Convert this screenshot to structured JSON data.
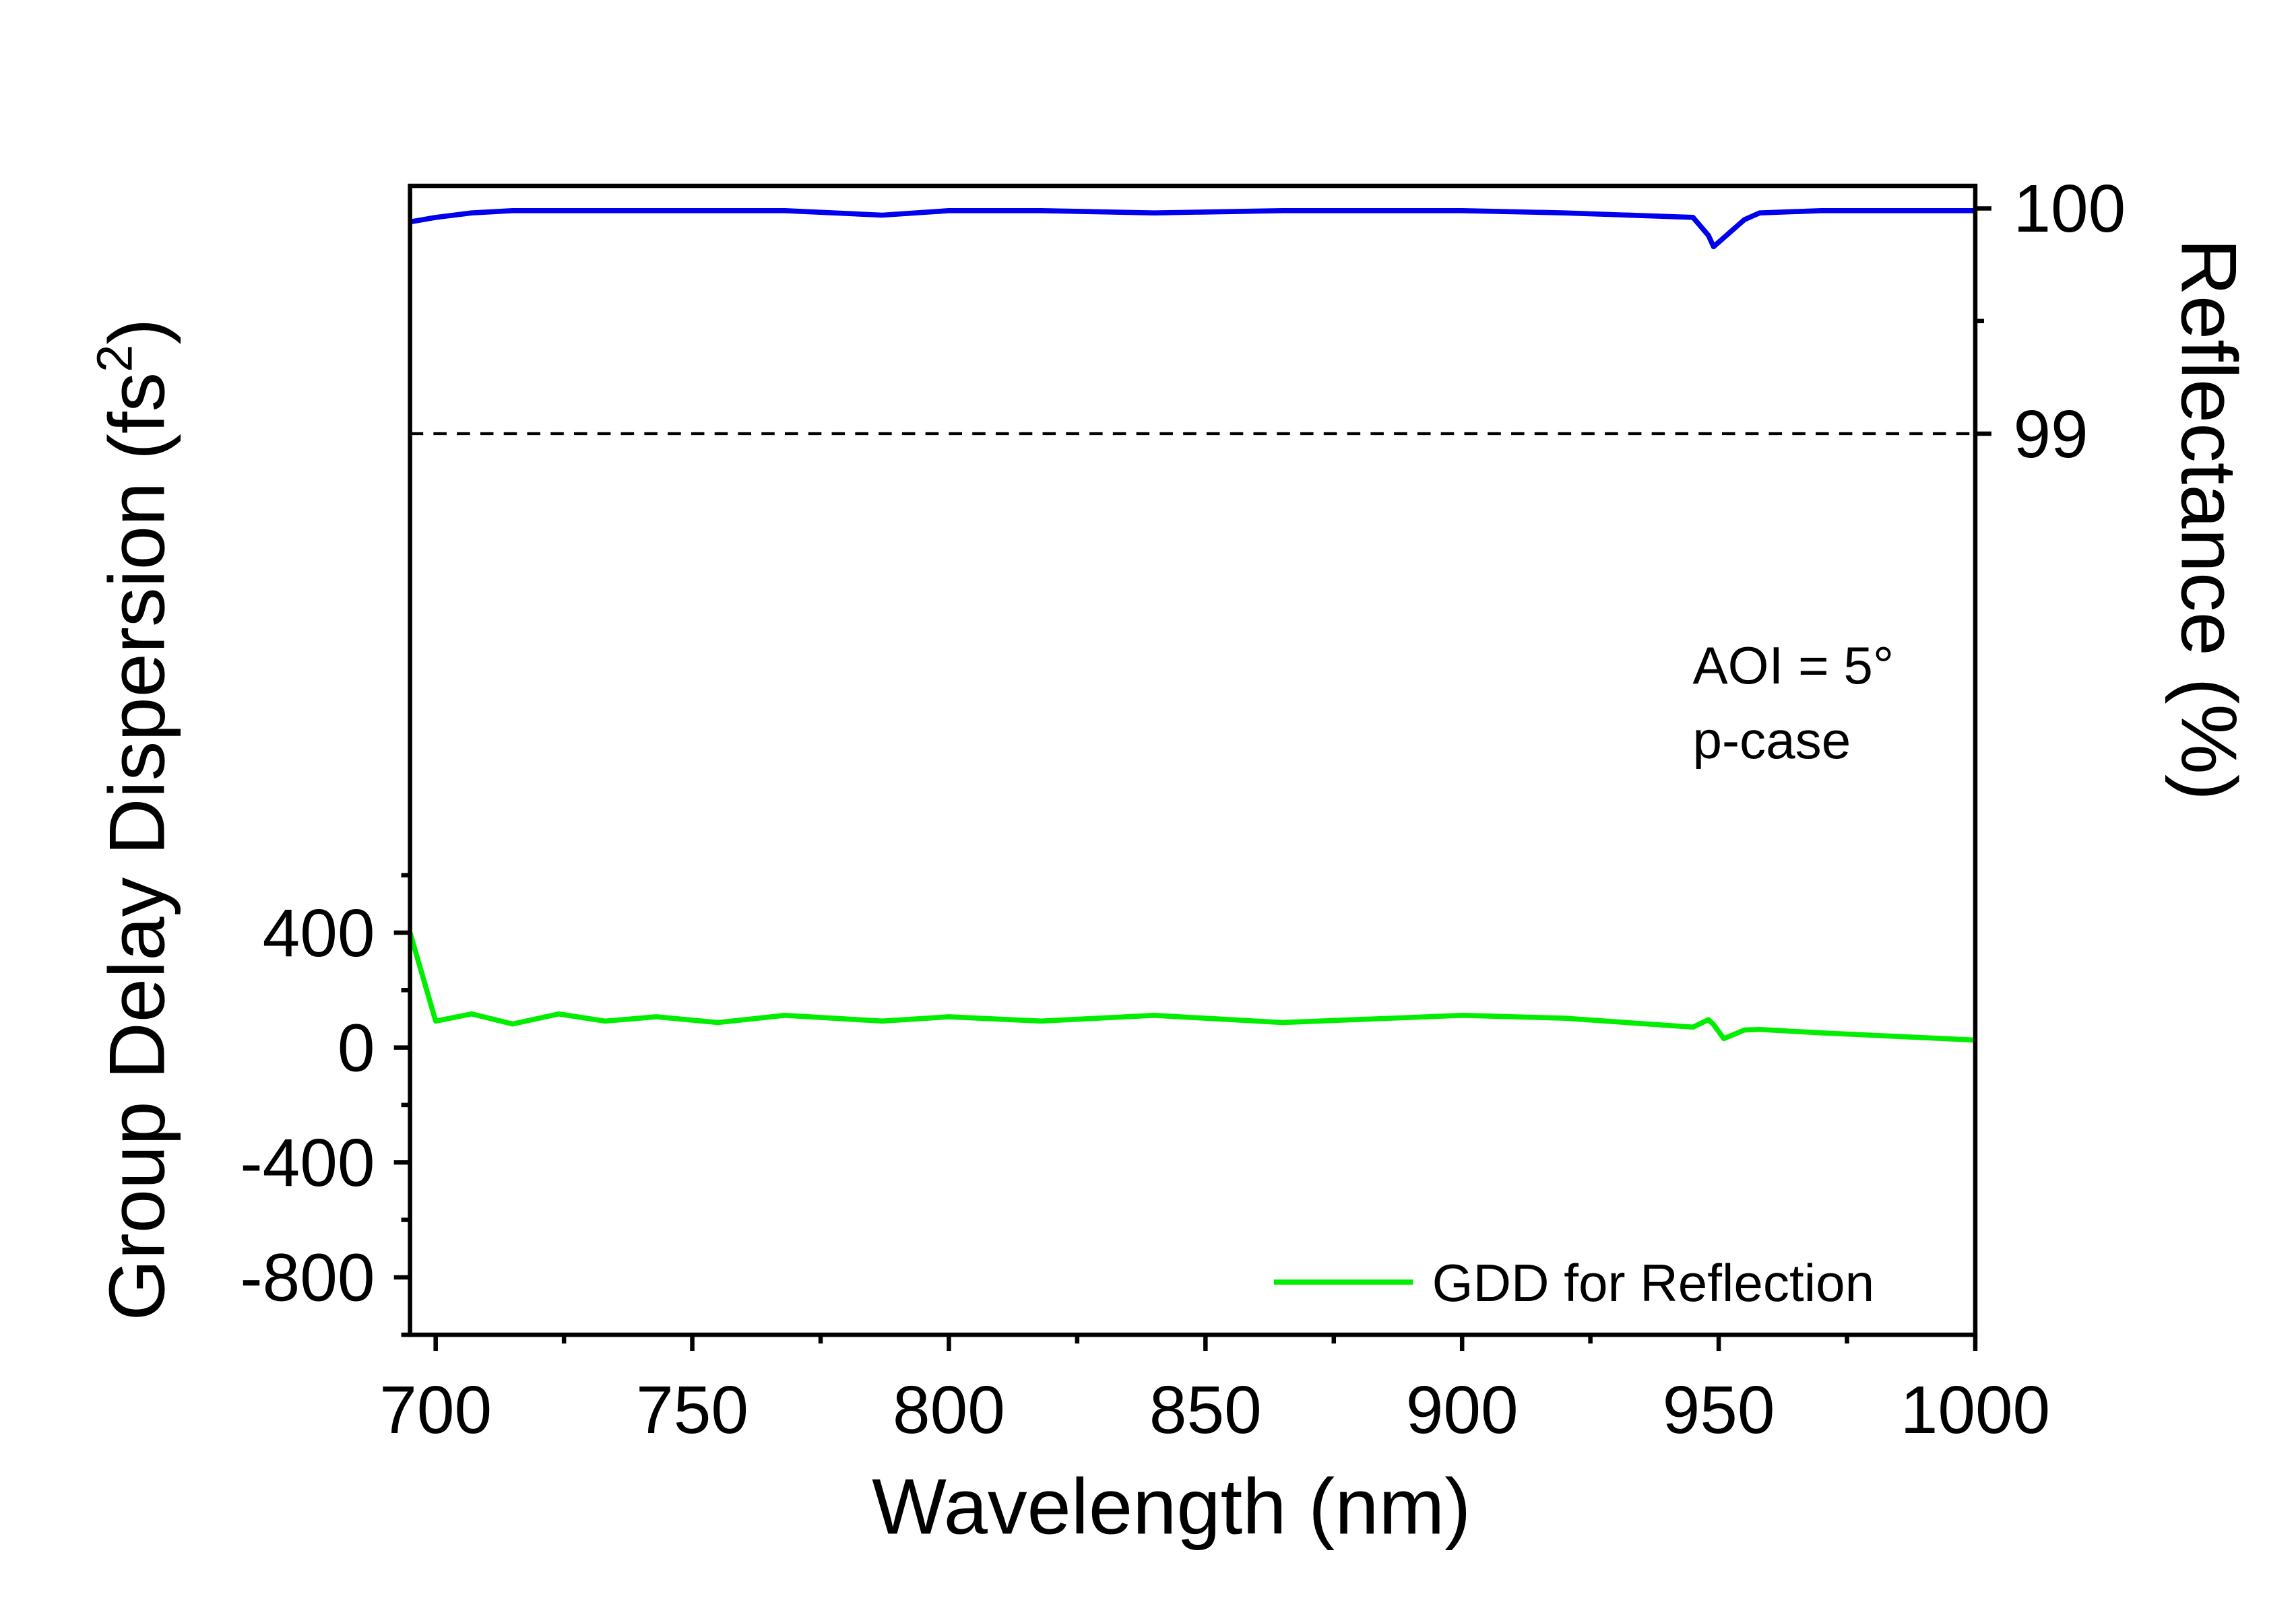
{
  "chart_data": {
    "type": "line",
    "xlabel": "Wavelength (nm)",
    "ylabel_parts": [
      "Group Delay Dispersion (fs",
      "2",
      ")"
    ],
    "y2label": "Reflectance (%)",
    "annotations": [
      "AOI = 5°",
      "p-case"
    ],
    "x": [
      695,
      700,
      707,
      715,
      724,
      733,
      743,
      755,
      768,
      787,
      800,
      818,
      840,
      865,
      900,
      920,
      945,
      948,
      949,
      951,
      955,
      958,
      970,
      1000
    ],
    "series": [
      {
        "name": "GDD for Reflection",
        "color": "#00ee00",
        "axis": "y",
        "values": [
          400,
          92,
          117,
          82,
          117,
          92,
          107,
          87,
          112,
          92,
          107,
          92,
          112,
          87,
          112,
          102,
          71,
          97,
          80,
          31,
          61,
          63,
          51,
          26
        ]
      },
      {
        "color": "#0000ee",
        "axis": "y2",
        "values": [
          99.94,
          99.96,
          99.98,
          99.99,
          99.99,
          99.99,
          99.99,
          99.99,
          99.99,
          99.97,
          99.99,
          99.99,
          99.98,
          99.99,
          99.99,
          99.98,
          99.96,
          99.88,
          99.83,
          99.87,
          99.95,
          99.98,
          99.99,
          99.99
        ]
      }
    ],
    "xlim": [
      695,
      1000
    ],
    "xticks": [
      700,
      750,
      800,
      850,
      900,
      950,
      1000
    ],
    "xminorticks": [
      725,
      775,
      825,
      875,
      925,
      975
    ],
    "ylim": [
      -1000,
      3000
    ],
    "yticks": [
      -800,
      -400,
      0,
      400
    ],
    "yminorticks": [
      -1000,
      -600,
      -200,
      200,
      600
    ],
    "y2lim": [
      95,
      100.1
    ],
    "y2ticks": [
      99,
      100
    ],
    "y2minorticks": [
      99.5
    ],
    "y2_refline": 99,
    "legend": "lower right"
  }
}
